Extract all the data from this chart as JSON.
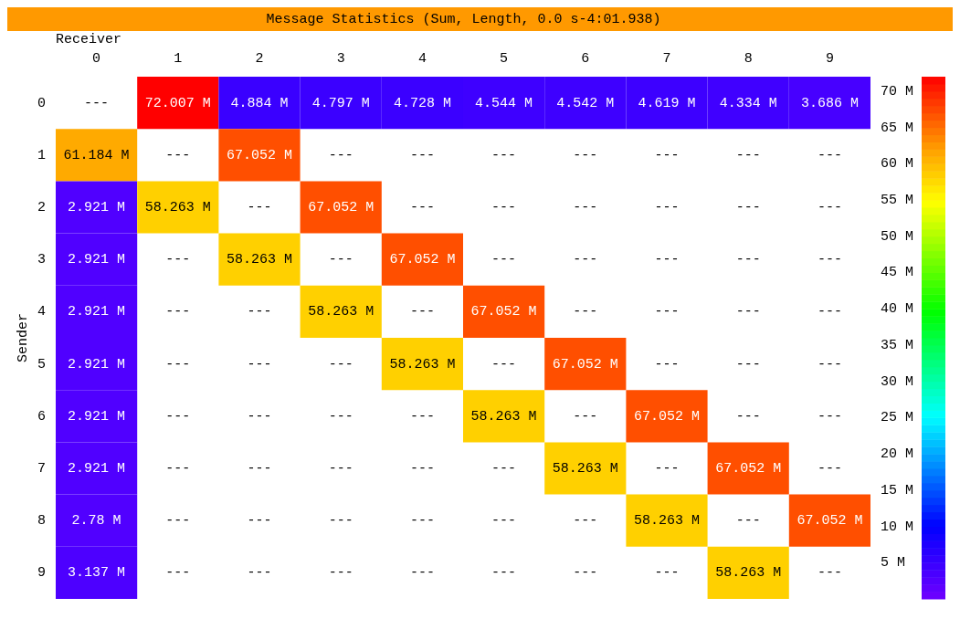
{
  "chart_data": {
    "type": "heatmap",
    "title": "Message Statistics (Sum, Length, 0.0 s-4:01.938)",
    "xlabel": "Receiver",
    "ylabel": "Sender",
    "categories": [
      "0",
      "1",
      "2",
      "3",
      "4",
      "5",
      "6",
      "7",
      "8",
      "9"
    ],
    "y_categories": [
      "0",
      "1",
      "2",
      "3",
      "4",
      "5",
      "6",
      "7",
      "8",
      "9"
    ],
    "cells": [
      [
        null,
        72.007,
        4.884,
        4.797,
        4.728,
        4.544,
        4.542,
        4.619,
        4.334,
        3.686
      ],
      [
        61.184,
        null,
        67.052,
        null,
        null,
        null,
        null,
        null,
        null,
        null
      ],
      [
        2.921,
        58.263,
        null,
        67.052,
        null,
        null,
        null,
        null,
        null,
        null
      ],
      [
        2.921,
        null,
        58.263,
        null,
        67.052,
        null,
        null,
        null,
        null,
        null
      ],
      [
        2.921,
        null,
        null,
        58.263,
        null,
        67.052,
        null,
        null,
        null,
        null
      ],
      [
        2.921,
        null,
        null,
        null,
        58.263,
        null,
        67.052,
        null,
        null,
        null
      ],
      [
        2.921,
        null,
        null,
        null,
        null,
        58.263,
        null,
        67.052,
        null,
        null
      ],
      [
        2.921,
        null,
        null,
        null,
        null,
        null,
        58.263,
        null,
        67.052,
        null
      ],
      [
        2.78,
        null,
        null,
        null,
        null,
        null,
        null,
        58.263,
        null,
        67.052
      ],
      [
        3.137,
        null,
        null,
        null,
        null,
        null,
        null,
        null,
        58.263,
        null
      ]
    ],
    "cell_labels": [
      [
        "---",
        "72.007 M",
        "4.884 M",
        "4.797 M",
        "4.728 M",
        "4.544 M",
        "4.542 M",
        "4.619 M",
        "4.334 M",
        "3.686 M"
      ],
      [
        "61.184 M",
        "---",
        "67.052 M",
        "---",
        "---",
        "---",
        "---",
        "---",
        "---",
        "---"
      ],
      [
        "2.921 M",
        "58.263 M",
        "---",
        "67.052 M",
        "---",
        "---",
        "---",
        "---",
        "---",
        "---"
      ],
      [
        "2.921 M",
        "---",
        "58.263 M",
        "---",
        "67.052 M",
        "---",
        "---",
        "---",
        "---",
        "---"
      ],
      [
        "2.921 M",
        "---",
        "---",
        "58.263 M",
        "---",
        "67.052 M",
        "---",
        "---",
        "---",
        "---"
      ],
      [
        "2.921 M",
        "---",
        "---",
        "---",
        "58.263 M",
        "---",
        "67.052 M",
        "---",
        "---",
        "---"
      ],
      [
        "2.921 M",
        "---",
        "---",
        "---",
        "---",
        "58.263 M",
        "---",
        "67.052 M",
        "---",
        "---"
      ],
      [
        "2.921 M",
        "---",
        "---",
        "---",
        "---",
        "---",
        "58.263 M",
        "---",
        "67.052 M",
        "---"
      ],
      [
        "2.78 M",
        "---",
        "---",
        "---",
        "---",
        "---",
        "---",
        "58.263 M",
        "---",
        "67.052 M"
      ],
      [
        "3.137 M",
        "---",
        "---",
        "---",
        "---",
        "---",
        "---",
        "---",
        "58.263 M",
        "---"
      ]
    ],
    "clim": [
      0,
      72
    ],
    "cticks": [
      {
        "value": 5,
        "label": "5 M"
      },
      {
        "value": 10,
        "label": "10 M"
      },
      {
        "value": 15,
        "label": "15 M"
      },
      {
        "value": 20,
        "label": "20 M"
      },
      {
        "value": 25,
        "label": "25 M"
      },
      {
        "value": 30,
        "label": "30 M"
      },
      {
        "value": 35,
        "label": "35 M"
      },
      {
        "value": 40,
        "label": "40 M"
      },
      {
        "value": 45,
        "label": "45 M"
      },
      {
        "value": 50,
        "label": "50 M"
      },
      {
        "value": 55,
        "label": "55 M"
      },
      {
        "value": 60,
        "label": "60 M"
      },
      {
        "value": 65,
        "label": "65 M"
      },
      {
        "value": 70,
        "label": "70 M"
      }
    ]
  }
}
